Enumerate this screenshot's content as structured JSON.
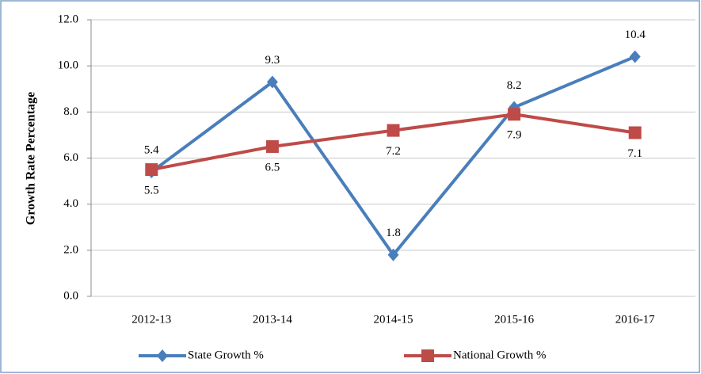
{
  "chart_data": {
    "type": "line",
    "y_axis_label": "Growth Rate Percentage",
    "categories": [
      "2012-13",
      "2013-14",
      "2014-15",
      "2015-16",
      "2016-17"
    ],
    "series": [
      {
        "name": "State Growth %",
        "color": "#4a7ebb",
        "marker": "diamond",
        "values": [
          5.4,
          9.3,
          1.8,
          8.2,
          10.4
        ]
      },
      {
        "name": "National Growth %",
        "color": "#be4b48",
        "marker": "square",
        "values": [
          5.5,
          6.5,
          7.2,
          7.9,
          7.1
        ]
      }
    ],
    "ylim": [
      0,
      12
    ],
    "yticks": [
      {
        "value": 0,
        "label": "0.0"
      },
      {
        "value": 2,
        "label": "2.0"
      },
      {
        "value": 4,
        "label": "4.0"
      },
      {
        "value": 6,
        "label": "6.0"
      },
      {
        "value": 8,
        "label": "8.0"
      },
      {
        "value": 10,
        "label": "10.0"
      },
      {
        "value": 12,
        "label": "12.0"
      }
    ],
    "grid": true,
    "legend": "bottom"
  }
}
